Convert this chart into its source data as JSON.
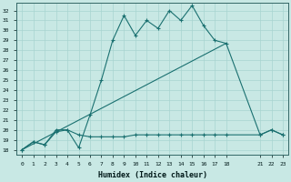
{
  "xlabel": "Humidex (Indice chaleur)",
  "bg_color": "#c8e8e4",
  "grid_color": "#a8d4d0",
  "line_color": "#1a7070",
  "xlim": [
    -0.5,
    23.5
  ],
  "ylim": [
    17.5,
    32.8
  ],
  "yticks": [
    18,
    19,
    20,
    21,
    22,
    23,
    24,
    25,
    26,
    27,
    28,
    29,
    30,
    31,
    32
  ],
  "xticks": [
    0,
    1,
    2,
    3,
    4,
    5,
    6,
    7,
    8,
    9,
    10,
    11,
    12,
    13,
    14,
    15,
    16,
    17,
    18,
    21,
    22,
    23
  ],
  "curve1_x": [
    0,
    1,
    2,
    3,
    4,
    5,
    6,
    7,
    8,
    9,
    10,
    11,
    12,
    13,
    14,
    15,
    16,
    17,
    18,
    21,
    22,
    23
  ],
  "curve1_y": [
    18.0,
    18.8,
    18.5,
    20.0,
    20.0,
    18.2,
    21.5,
    25.0,
    29.0,
    31.5,
    29.5,
    31.0,
    30.2,
    32.0,
    31.0,
    32.5,
    30.5,
    29.0,
    28.7,
    19.5,
    20.0,
    19.5
  ],
  "curve2_x": [
    0,
    18
  ],
  "curve2_y": [
    18.0,
    28.7
  ],
  "curve3_x": [
    0,
    1,
    2,
    3,
    4,
    5,
    6,
    7,
    8,
    9,
    10,
    11,
    12,
    13,
    14,
    15,
    16,
    17,
    18,
    21,
    22,
    23
  ],
  "curve3_y": [
    18.0,
    18.8,
    18.5,
    19.8,
    20.0,
    19.5,
    19.3,
    19.3,
    19.3,
    19.3,
    19.5,
    19.5,
    19.5,
    19.5,
    19.5,
    19.5,
    19.5,
    19.5,
    19.5,
    19.5,
    20.0,
    19.5
  ]
}
